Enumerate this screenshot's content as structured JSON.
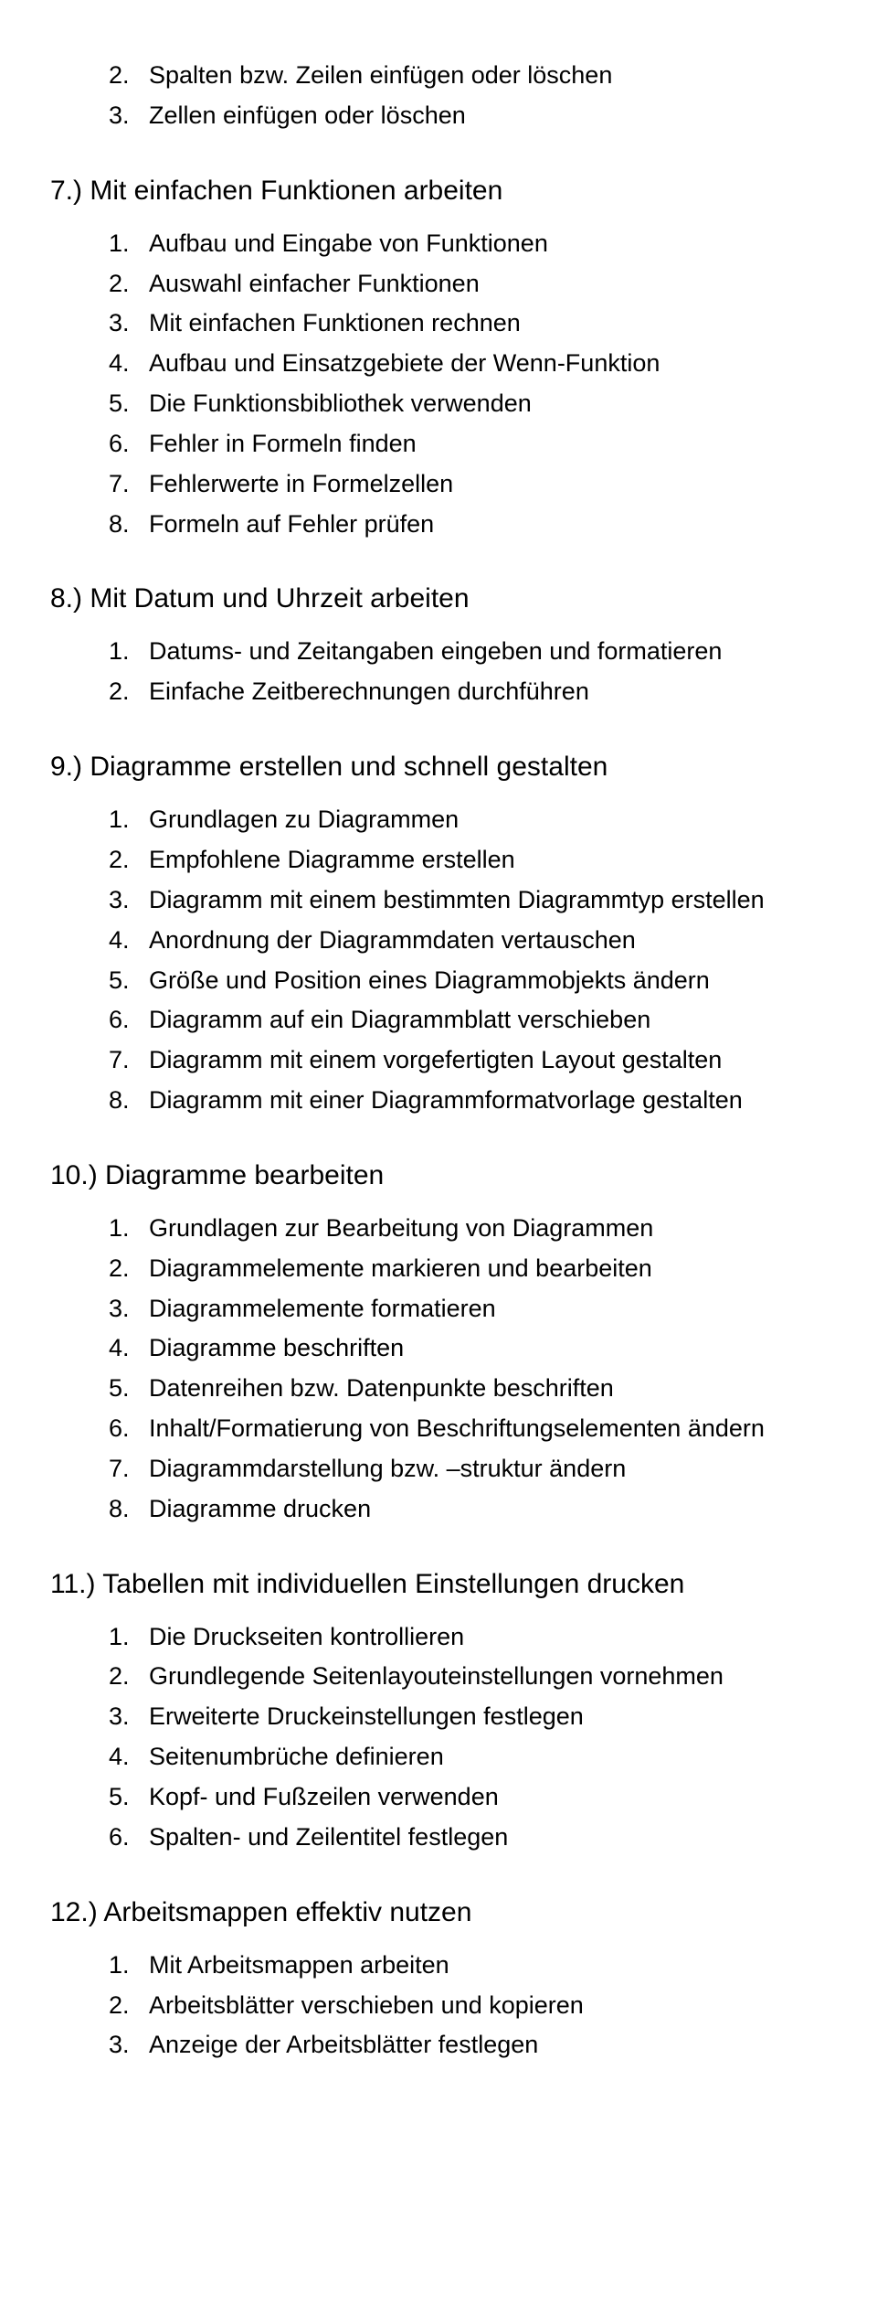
{
  "continuation": [
    {
      "number": "2.",
      "text": "Spalten bzw. Zeilen einfügen oder löschen"
    },
    {
      "number": "3.",
      "text": "Zellen einfügen oder löschen"
    }
  ],
  "sections": [
    {
      "title": "7.) Mit einfachen Funktionen arbeiten",
      "items": [
        "Aufbau und Eingabe von Funktionen",
        "Auswahl einfacher Funktionen",
        "Mit einfachen Funktionen rechnen",
        "Aufbau und Einsatzgebiete der Wenn-Funktion",
        "Die Funktionsbibliothek verwenden",
        "Fehler in Formeln finden",
        "Fehlerwerte in Formelzellen",
        "Formeln auf Fehler prüfen"
      ]
    },
    {
      "title": "8.) Mit Datum und Uhrzeit arbeiten",
      "items": [
        "Datums- und Zeitangaben eingeben und formatieren",
        "Einfache Zeitberechnungen durchführen"
      ]
    },
    {
      "title": "9.) Diagramme erstellen und schnell gestalten",
      "items": [
        "Grundlagen zu Diagrammen",
        "Empfohlene Diagramme erstellen",
        "Diagramm mit einem bestimmten Diagrammtyp erstellen",
        "Anordnung der Diagrammdaten vertauschen",
        "Größe und Position eines Diagrammobjekts ändern",
        "Diagramm auf ein Diagrammblatt verschieben",
        "Diagramm mit einem vorgefertigten Layout gestalten",
        "Diagramm mit einer Diagrammformatvorlage gestalten"
      ]
    },
    {
      "title": "10.) Diagramme bearbeiten",
      "items": [
        "Grundlagen zur Bearbeitung von Diagrammen",
        "Diagrammelemente markieren und bearbeiten",
        "Diagrammelemente formatieren",
        "Diagramme beschriften",
        "Datenreihen bzw. Datenpunkte beschriften",
        "Inhalt/Formatierung von Beschriftungselementen ändern",
        "Diagrammdarstellung bzw. –struktur ändern",
        "Diagramme drucken"
      ]
    },
    {
      "title": "11.) Tabellen mit individuellen Einstellungen drucken",
      "items": [
        "Die Druckseiten kontrollieren",
        "Grundlegende Seitenlayouteinstellungen vornehmen",
        "Erweiterte Druckeinstellungen festlegen",
        "Seitenumbrüche definieren",
        "Kopf- und Fußzeilen verwenden",
        "Spalten- und Zeilentitel festlegen"
      ]
    },
    {
      "title": "12.) Arbeitsmappen effektiv nutzen",
      "items": [
        "Mit Arbeitsmappen arbeiten",
        "Arbeitsblätter verschieben und kopieren",
        "Anzeige der Arbeitsblätter festlegen"
      ]
    }
  ]
}
